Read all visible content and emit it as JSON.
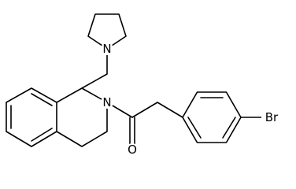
{
  "atoms": [
    {
      "label": "N"
    },
    {
      "label": "N"
    },
    {
      "label": "O"
    },
    {
      "label": "Br"
    }
  ]
}
